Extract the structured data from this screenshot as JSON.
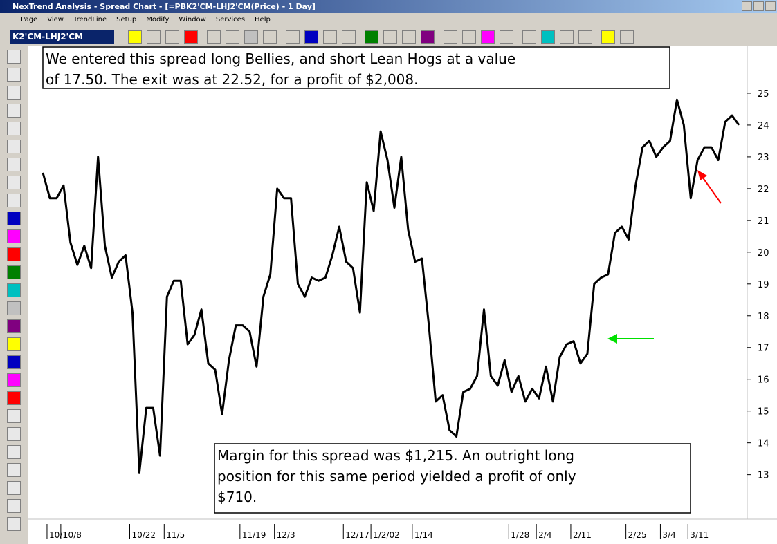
{
  "window_title": "NexTrend Analysis - Spread Chart - [=PBK2'CM-LHJ2'CM(Price) - 1 Day]",
  "menu": [
    "Page",
    "View",
    "TrendLine",
    "Setup",
    "Modify",
    "Window",
    "Services",
    "Help"
  ],
  "symbol": "K2'CM-LHJ2'CM",
  "chart_data": {
    "type": "line",
    "categories": [
      null,
      "10/1",
      null,
      "10/8",
      null,
      null,
      null,
      null,
      null,
      null,
      null,
      null,
      null,
      "10/22",
      null,
      null,
      null,
      null,
      "11/5",
      null,
      null,
      null,
      null,
      null,
      null,
      null,
      null,
      null,
      null,
      "11/19",
      null,
      null,
      null,
      null,
      "12/3",
      null,
      null,
      null,
      null,
      null,
      null,
      null,
      null,
      null,
      "12/17",
      null,
      null,
      null,
      "1/2/02",
      null,
      null,
      null,
      null,
      null,
      "1/14",
      null,
      null,
      null,
      null,
      null,
      null,
      null,
      null,
      null,
      null,
      null,
      null,
      null,
      "1/28",
      null,
      null,
      null,
      "2/4",
      null,
      null,
      null,
      null,
      "2/11",
      null,
      null,
      null,
      null,
      null,
      null,
      null,
      "2/25",
      null,
      null,
      null,
      null,
      "3/4",
      null,
      null,
      null,
      "3/11",
      null,
      null,
      null,
      null,
      null,
      null,
      null
    ],
    "series": [
      {
        "color": "#000000",
        "values": [
          22.5,
          21.7,
          21.7,
          22.1,
          20.3,
          19.6,
          20.2,
          19.5,
          23.0,
          20.2,
          19.2,
          19.7,
          19.9,
          18.1,
          13.05,
          15.1,
          15.1,
          13.6,
          18.6,
          19.1,
          19.1,
          17.1,
          17.4,
          18.2,
          16.5,
          16.3,
          14.9,
          16.6,
          17.7,
          17.7,
          17.5,
          16.4,
          18.6,
          19.3,
          22.0,
          21.7,
          21.7,
          19.0,
          18.6,
          19.2,
          19.1,
          19.2,
          19.9,
          20.8,
          19.7,
          19.5,
          18.1,
          22.2,
          21.3,
          23.8,
          22.9,
          21.4,
          23.0,
          20.7,
          19.7,
          19.8,
          17.7,
          15.3,
          15.5,
          14.4,
          14.2,
          15.6,
          15.7,
          16.1,
          18.2,
          16.1,
          15.8,
          16.6,
          15.6,
          16.1,
          15.3,
          15.7,
          15.4,
          16.4,
          15.3,
          16.7,
          17.1,
          17.2,
          16.5,
          16.8,
          19.0,
          19.2,
          19.3,
          20.6,
          20.8,
          20.4,
          22.1,
          23.3,
          23.5,
          23.0,
          23.3,
          23.5,
          24.8,
          24.0,
          21.7,
          22.9,
          23.3,
          23.3,
          22.9,
          24.1,
          24.3,
          24.0
        ]
      }
    ],
    "ylim": [
      11.6,
      26.5
    ],
    "yticks": [
      13,
      14,
      15,
      16,
      17,
      18,
      19,
      20,
      21,
      22,
      23,
      24,
      25
    ],
    "y_axis_side": "right",
    "annotations": [
      [
        "We entered this spread long Bellies, and short Lean Hogs at a value",
        "of 17.50.  The exit was at 22.52, for a profit of $2,008."
      ],
      [
        "Margin for this spread was $1,215. An outright long",
        "position for this same period yielded a profit of only",
        "$710."
      ]
    ]
  }
}
